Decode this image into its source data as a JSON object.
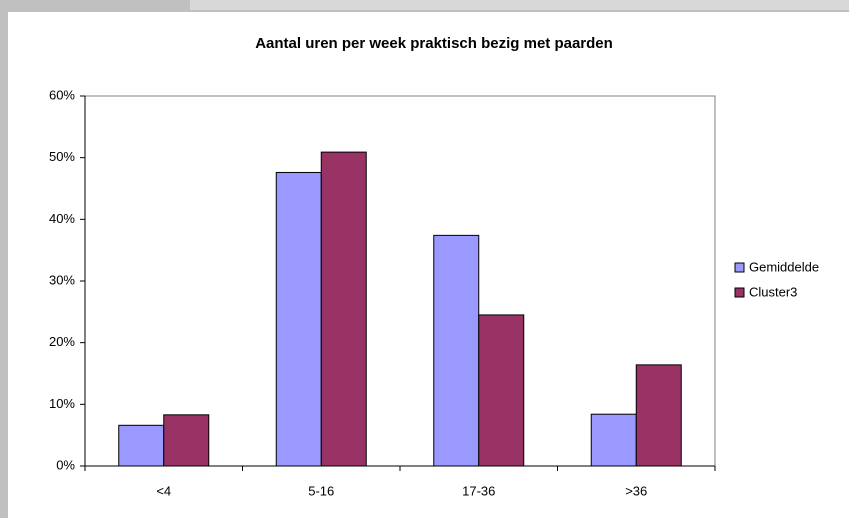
{
  "chart_data": {
    "type": "bar",
    "title": "Aantal uren per week praktisch bezig met paarden",
    "categories": [
      "<4",
      "5-16",
      "17-36",
      ">36"
    ],
    "series": [
      {
        "name": "Gemiddelde",
        "color": "#9999ff",
        "values": [
          6.6,
          47.6,
          37.4,
          8.4
        ]
      },
      {
        "name": "Cluster3",
        "color": "#993366",
        "values": [
          8.3,
          50.9,
          24.5,
          16.4
        ]
      }
    ],
    "ylim": [
      0,
      60
    ],
    "yticks": [
      {
        "value": 0,
        "label": "0%"
      },
      {
        "value": 10,
        "label": "10%"
      },
      {
        "value": 20,
        "label": "20%"
      },
      {
        "value": 30,
        "label": "30%"
      },
      {
        "value": 40,
        "label": "40%"
      },
      {
        "value": 50,
        "label": "50%"
      },
      {
        "value": 60,
        "label": "60%"
      }
    ],
    "grid": false,
    "legend": "right"
  }
}
